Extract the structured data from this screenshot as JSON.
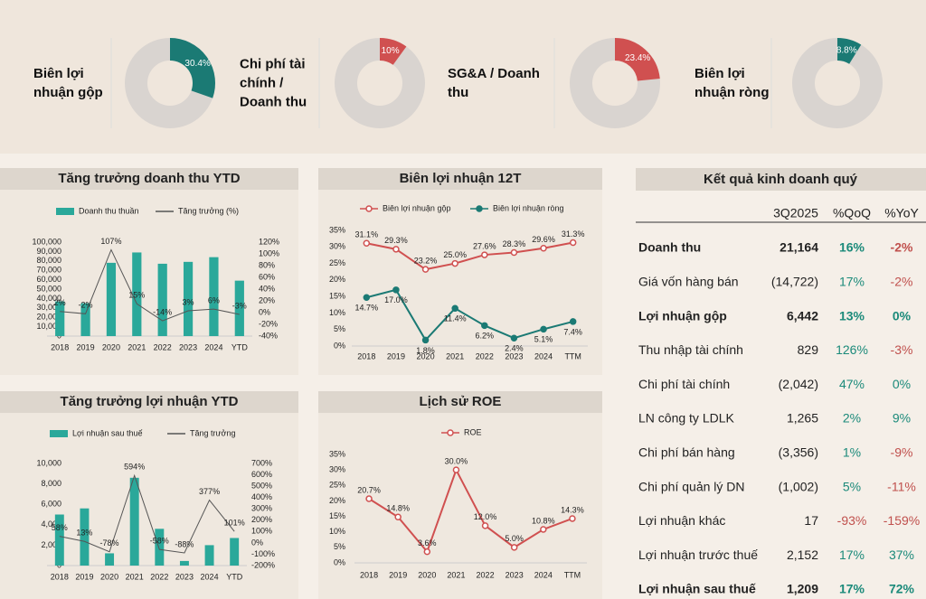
{
  "chart_data": [
    {
      "type": "pie",
      "title": "Biên lợi nhuận gộp",
      "values": [
        30.4
      ],
      "value_labels": [
        "30.4%"
      ],
      "color": "#1b7a74"
    },
    {
      "type": "pie",
      "title": "Chi phí tài chính / Doanh thu",
      "values": [
        10
      ],
      "value_labels": [
        "10%"
      ],
      "color": "#d05050"
    },
    {
      "type": "pie",
      "title": "SG&A / Doanh thu",
      "values": [
        23.4
      ],
      "value_labels": [
        "23.4%"
      ],
      "color": "#d05050"
    },
    {
      "type": "pie",
      "title": "Biên lợi nhuận ròng",
      "values": [
        8.8
      ],
      "value_labels": [
        "8.8%"
      ],
      "color": "#1b7a74"
    },
    {
      "type": "combo",
      "title": "Tăng trưởng doanh thu YTD",
      "categories": [
        "2018",
        "2019",
        "2020",
        "2021",
        "2022",
        "2023",
        "2024",
        "YTD"
      ],
      "series": [
        {
          "name": "Doanh thu thuần",
          "type": "bar",
          "color": "#2aa89a",
          "values": [
            37000,
            35000,
            78000,
            89000,
            77000,
            79000,
            84000,
            59000
          ]
        },
        {
          "name": "Tăng trưởng (%)",
          "type": "line",
          "color": "#555555",
          "axis": "y2",
          "values": [
            2,
            -2,
            107,
            15,
            -14,
            3,
            6,
            -3
          ],
          "value_labels": [
            "2%",
            "-2%",
            "107%",
            "15%",
            "-14%",
            "3%",
            "6%",
            "-3%"
          ]
        }
      ],
      "ylim": [
        0,
        100000
      ],
      "yticks": [
        0,
        {
          "value": 10000,
          "label": "10,000"
        },
        {
          "value": 20000,
          "label": "20,000"
        },
        {
          "value": 30000,
          "label": "30,000"
        },
        {
          "value": 40000,
          "label": "40,000"
        },
        {
          "value": 50000,
          "label": "50,000"
        },
        {
          "value": 60000,
          "label": "60,000"
        },
        {
          "value": 70000,
          "label": "70,000"
        },
        {
          "value": 80000,
          "label": "80,000"
        },
        {
          "value": 90000,
          "label": "90,000"
        },
        {
          "value": 100000,
          "label": "100,000"
        }
      ],
      "y2lim": [
        -40,
        120
      ],
      "y2ticks": [
        {
          "value": -40,
          "label": "-40%"
        },
        {
          "value": -20,
          "label": "-20%"
        },
        {
          "value": 0,
          "label": "0%"
        },
        {
          "value": 20,
          "label": "20%"
        },
        {
          "value": 40,
          "label": "40%"
        },
        {
          "value": 60,
          "label": "60%"
        },
        {
          "value": 80,
          "label": "80%"
        },
        {
          "value": 100,
          "label": "100%"
        },
        {
          "value": 120,
          "label": "120%"
        }
      ]
    },
    {
      "type": "line",
      "title": "Biên lợi nhuận 12T",
      "categories": [
        "2018",
        "2019",
        "2020",
        "2021",
        "2022",
        "2023",
        "2024",
        "TTM"
      ],
      "series": [
        {
          "name": "Biên lợi nhuận gộp",
          "color": "#d05050",
          "marker": "open",
          "label_position": "above",
          "values": [
            31.1,
            29.3,
            23.2,
            25.0,
            27.6,
            28.3,
            29.6,
            31.3
          ],
          "value_labels": [
            "31.1%",
            "29.3%",
            "23.2%",
            "25.0%",
            "27.6%",
            "28.3%",
            "29.6%",
            "31.3%"
          ]
        },
        {
          "name": "Biên lợi nhuận ròng",
          "color": "#1b7a74",
          "marker": "filled",
          "label_position": "below",
          "values": [
            14.7,
            17.0,
            1.8,
            11.4,
            6.2,
            2.4,
            5.1,
            7.4
          ],
          "value_labels": [
            "14.7%",
            "17.0%",
            "1.8%",
            "11.4%",
            "6.2%",
            "2.4%",
            "5.1%",
            "7.4%"
          ]
        }
      ],
      "ylim": [
        0,
        35
      ],
      "yticks": [
        {
          "value": 0,
          "label": "0%"
        },
        {
          "value": 5,
          "label": "5%"
        },
        {
          "value": 10,
          "label": "10%"
        },
        {
          "value": 15,
          "label": "15%"
        },
        {
          "value": 20,
          "label": "20%"
        },
        {
          "value": 25,
          "label": "25%"
        },
        {
          "value": 30,
          "label": "30%"
        },
        {
          "value": 35,
          "label": "35%"
        }
      ]
    },
    {
      "type": "combo",
      "title": "Tăng trưởng lợi nhuận YTD",
      "categories": [
        "2018",
        "2019",
        "2020",
        "2021",
        "2022",
        "2023",
        "2024",
        "YTD"
      ],
      "series": [
        {
          "name": "Lợi nhuận sau thuế",
          "type": "bar",
          "color": "#2aa89a",
          "values": [
            5000,
            5600,
            1200,
            8600,
            3600,
            450,
            2000,
            2700
          ]
        },
        {
          "name": "Tăng trưởng",
          "type": "line",
          "color": "#555555",
          "axis": "y2",
          "values": [
            58,
            13,
            -78,
            594,
            -58,
            -88,
            377,
            101
          ],
          "value_labels": [
            "58%",
            "13%",
            "-78%",
            "594%",
            "-58%",
            "-88%",
            "377%",
            "101%"
          ]
        }
      ],
      "ylim": [
        0,
        10000
      ],
      "yticks": [
        0,
        {
          "value": 2000,
          "label": "2,000"
        },
        {
          "value": 4000,
          "label": "4,000"
        },
        {
          "value": 6000,
          "label": "6,000"
        },
        {
          "value": 8000,
          "label": "8,000"
        },
        {
          "value": 10000,
          "label": "10,000"
        }
      ],
      "y2lim": [
        -200,
        700
      ],
      "y2ticks": [
        {
          "value": -200,
          "label": "-200%"
        },
        {
          "value": -100,
          "label": "-100%"
        },
        {
          "value": 0,
          "label": "0%"
        },
        {
          "value": 100,
          "label": "100%"
        },
        {
          "value": 200,
          "label": "200%"
        },
        {
          "value": 300,
          "label": "300%"
        },
        {
          "value": 400,
          "label": "400%"
        },
        {
          "value": 500,
          "label": "500%"
        },
        {
          "value": 600,
          "label": "600%"
        },
        {
          "value": 700,
          "label": "700%"
        }
      ]
    },
    {
      "type": "line",
      "title": "Lịch sử ROE",
      "categories": [
        "2018",
        "2019",
        "2020",
        "2021",
        "2022",
        "2023",
        "2024",
        "TTM"
      ],
      "series": [
        {
          "name": "ROE",
          "color": "#d05050",
          "marker": "open",
          "label_position": "above",
          "values": [
            20.7,
            14.8,
            3.6,
            30.0,
            12.0,
            5.0,
            10.8,
            14.3
          ],
          "value_labels": [
            "20.7%",
            "14.8%",
            "3.6%",
            "30.0%",
            "12.0%",
            "5.0%",
            "10.8%",
            "14.3%"
          ]
        }
      ],
      "ylim": [
        0,
        35
      ],
      "yticks": [
        {
          "value": 0,
          "label": "0%"
        },
        {
          "value": 5,
          "label": "5%"
        },
        {
          "value": 10,
          "label": "10%"
        },
        {
          "value": 15,
          "label": "15%"
        },
        {
          "value": 20,
          "label": "20%"
        },
        {
          "value": 25,
          "label": "25%"
        },
        {
          "value": 30,
          "label": "30%"
        },
        {
          "value": 35,
          "label": "35%"
        }
      ]
    }
  ],
  "table": {
    "title": "Kết quả kinh doanh quý",
    "columns": [
      "3Q2025",
      "%QoQ",
      "%YoY"
    ],
    "rows": [
      {
        "label": "Doanh thu",
        "value": "21,164",
        "qoq": "16%",
        "yoy": "-2%",
        "bold": true
      },
      {
        "label": "Giá vốn hàng bán",
        "value": "(14,722)",
        "qoq": "17%",
        "yoy": "-2%",
        "bold": false
      },
      {
        "label": "Lợi nhuận gộp",
        "value": "6,442",
        "qoq": "13%",
        "yoy": "0%",
        "bold": true
      },
      {
        "label": "Thu nhập tài chính",
        "value": "829",
        "qoq": "126%",
        "yoy": "-3%",
        "bold": false
      },
      {
        "label": "Chi phí tài chính",
        "value": "(2,042)",
        "qoq": "47%",
        "yoy": "0%",
        "bold": false
      },
      {
        "label": "LN công ty LDLK",
        "value": "1,265",
        "qoq": "2%",
        "yoy": "9%",
        "bold": false
      },
      {
        "label": "Chi phí bán hàng",
        "value": "(3,356)",
        "qoq": "1%",
        "yoy": "-9%",
        "bold": false
      },
      {
        "label": "Chi phí quản lý DN",
        "value": "(1,002)",
        "qoq": "5%",
        "yoy": "-11%",
        "bold": false
      },
      {
        "label": "Lợi nhuận khác",
        "value": "17",
        "qoq": "-93%",
        "yoy": "-159%",
        "bold": false
      },
      {
        "label": "Lợi nhuận trước thuế",
        "value": "2,152",
        "qoq": "17%",
        "yoy": "37%",
        "bold": false
      },
      {
        "label": "Lợi nhuận sau thuế",
        "value": "1,209",
        "qoq": "17%",
        "yoy": "72%",
        "bold": true
      }
    ]
  }
}
